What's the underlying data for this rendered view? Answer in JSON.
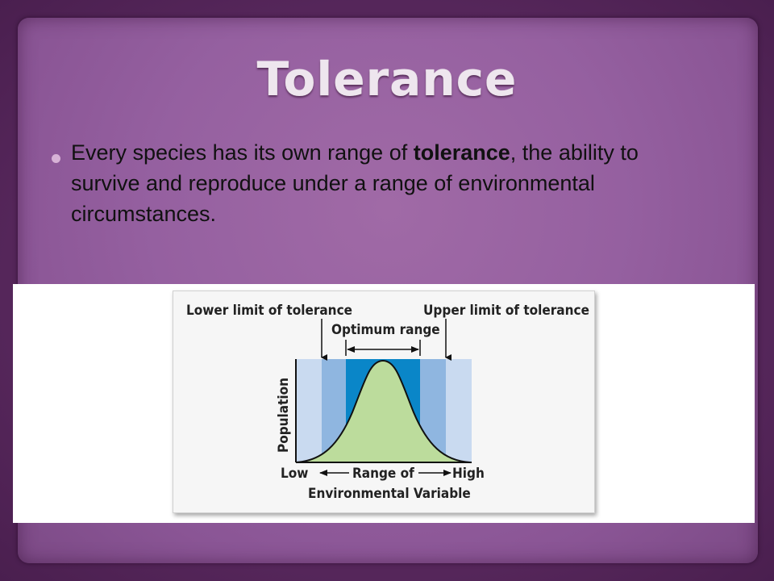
{
  "slide": {
    "title": "Tolerance",
    "bullet": {
      "prefix": "Every species has its own range of ",
      "bold": "tolerance",
      "suffix": ", the ability to survive and reproduce under a range of environmental  circumstances."
    }
  },
  "diagram": {
    "lower_limit_label": "Lower limit of tolerance",
    "upper_limit_label": "Upper limit of tolerance",
    "optimum_label": "Optimum range",
    "y_label": "Population",
    "x_low": "Low",
    "x_mid_line1": "Range of",
    "x_mid_line2": "Environmental Variable",
    "x_high": "High",
    "colors": {
      "outer_zone": "#c9daf0",
      "stress_zone": "#8fb6e0",
      "optimum_zone": "#0a86c8",
      "curve_fill": "#bcdc9c",
      "axis": "#111111"
    }
  }
}
